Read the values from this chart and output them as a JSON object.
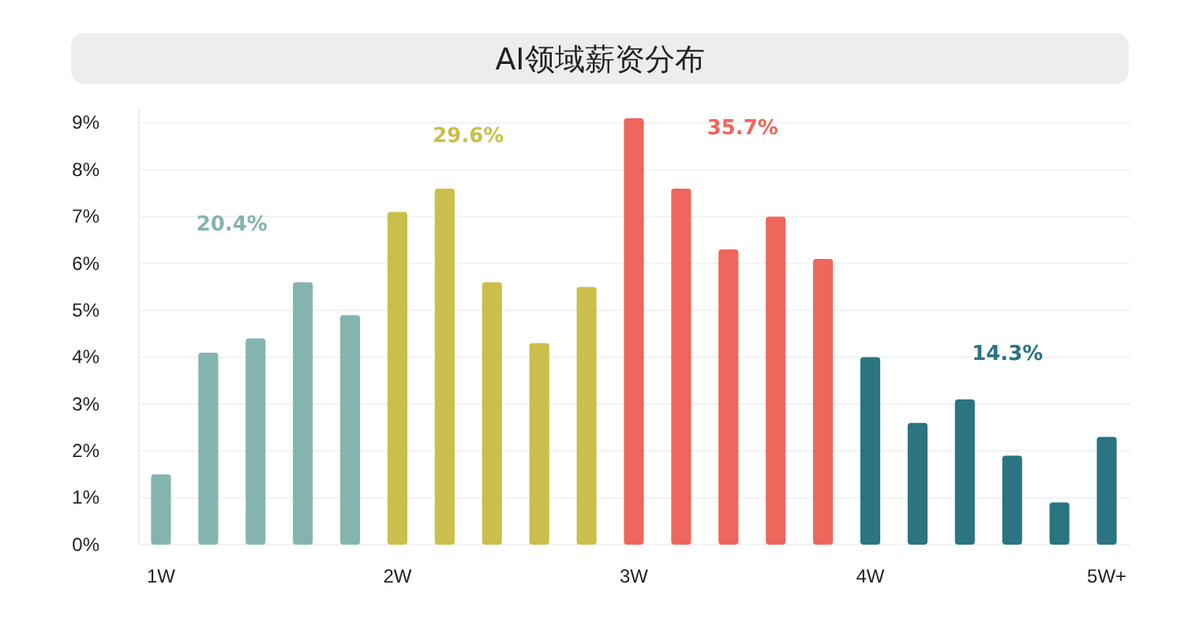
{
  "chart_data": {
    "type": "bar",
    "title": "AI领域薪资分布",
    "categories": [
      "1W",
      null,
      null,
      null,
      null,
      "2W",
      null,
      null,
      null,
      null,
      "3W",
      null,
      null,
      null,
      null,
      "4W",
      null,
      null,
      null,
      null,
      "5W+"
    ],
    "values": [
      1.5,
      4.1,
      4.4,
      5.6,
      4.9,
      7.1,
      7.6,
      5.6,
      4.3,
      5.5,
      9.1,
      7.6,
      6.3,
      7.0,
      6.1,
      4.0,
      2.6,
      3.1,
      1.9,
      0.9,
      2.3
    ],
    "colors": [
      "#84b4ae",
      "#84b4ae",
      "#84b4ae",
      "#84b4ae",
      "#84b4ae",
      "#c9bf4a",
      "#c9bf4a",
      "#c9bf4a",
      "#c9bf4a",
      "#c9bf4a",
      "#ee665c",
      "#ee665c",
      "#ee665c",
      "#ee665c",
      "#ee665c",
      "#2b7482",
      "#2b7482",
      "#2b7482",
      "#2b7482",
      "#2b7482",
      "#2b7482"
    ],
    "annotations": [
      "20.4%",
      "29.6%",
      "35.7%",
      "14.3%"
    ],
    "ylim": [
      0,
      9.3
    ],
    "yticks": [
      {
        "value": 0,
        "label": "0%"
      },
      {
        "value": 1,
        "label": "1%"
      },
      {
        "value": 2,
        "label": "2%"
      },
      {
        "value": 3,
        "label": "3%"
      },
      {
        "value": 4,
        "label": "4%"
      },
      {
        "value": 5,
        "label": "5%"
      },
      {
        "value": 6,
        "label": "6%"
      },
      {
        "value": 7,
        "label": "7%"
      },
      {
        "value": 8,
        "label": "8%"
      },
      {
        "value": 9,
        "label": "9%"
      }
    ],
    "grid": "y"
  }
}
